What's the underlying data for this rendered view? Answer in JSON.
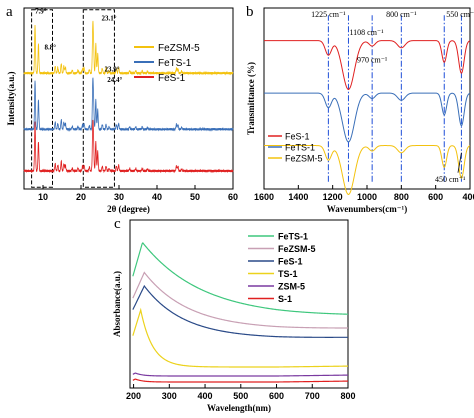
{
  "colors": {
    "red": "#e02020",
    "blue": "#3a6fb8",
    "gold": "#f3c20f",
    "green": "#3ec77d",
    "pink": "#c8a0b4",
    "navy": "#2a4a88",
    "yellow": "#ecd21c",
    "purple": "#7a3aa0",
    "dash_blue": "#1f4fd8"
  },
  "panel_labels": {
    "a": "a",
    "b": "b",
    "c": "c"
  },
  "chart_data": [
    {
      "id": "a",
      "type": "line",
      "title": "",
      "xlabel": "2θ (degree)",
      "ylabel": "Intensity(a.u.)",
      "xlim": [
        5,
        60
      ],
      "xticks": [
        10,
        20,
        30,
        40,
        50,
        60
      ],
      "tick_labels": [
        "10",
        "20",
        "30",
        "40",
        "50",
        "60"
      ],
      "grid": false,
      "legend_position": "top-right",
      "legend": [
        "FeZSM-5",
        "FeTS-1",
        "FeS-1"
      ],
      "series": [
        {
          "name": "FeZSM-5",
          "color": "gold",
          "baseline": 0.64
        },
        {
          "name": "FeTS-1",
          "color": "blue",
          "baseline": 0.33
        },
        {
          "name": "FeS-1",
          "color": "red",
          "baseline": 0.1
        }
      ],
      "peaks": [
        {
          "x": 7.9,
          "h": 1.0
        },
        {
          "x": 8.8,
          "h": 0.6
        },
        {
          "x": 13.2,
          "h": 0.15
        },
        {
          "x": 13.9,
          "h": 0.12
        },
        {
          "x": 14.8,
          "h": 0.2
        },
        {
          "x": 15.5,
          "h": 0.15
        },
        {
          "x": 15.9,
          "h": 0.12
        },
        {
          "x": 17.7,
          "h": 0.06
        },
        {
          "x": 19.2,
          "h": 0.06
        },
        {
          "x": 20.4,
          "h": 0.1
        },
        {
          "x": 20.8,
          "h": 0.12
        },
        {
          "x": 22.2,
          "h": 0.08
        },
        {
          "x": 23.1,
          "h": 0.9
        },
        {
          "x": 23.3,
          "h": 0.5
        },
        {
          "x": 23.9,
          "h": 0.6
        },
        {
          "x": 24.4,
          "h": 0.4
        },
        {
          "x": 25.6,
          "h": 0.1
        },
        {
          "x": 26.6,
          "h": 0.1
        },
        {
          "x": 27.4,
          "h": 0.05
        },
        {
          "x": 29.3,
          "h": 0.1
        },
        {
          "x": 29.9,
          "h": 0.12
        },
        {
          "x": 32.8,
          "h": 0.05
        },
        {
          "x": 34.4,
          "h": 0.05
        },
        {
          "x": 36.1,
          "h": 0.05
        },
        {
          "x": 37.5,
          "h": 0.04
        },
        {
          "x": 45.1,
          "h": 0.1
        },
        {
          "x": 45.5,
          "h": 0.1
        },
        {
          "x": 46.5,
          "h": 0.04
        }
      ],
      "annotations": [
        {
          "text": "7.9°",
          "x": 7.9,
          "y": 0.97
        },
        {
          "text": "8.8°",
          "x": 10.4,
          "y": 0.77
        },
        {
          "text": "23.1°",
          "x": 25.4,
          "y": 0.93
        },
        {
          "text": "23.9°",
          "x": 26.2,
          "y": 0.65
        },
        {
          "text": "24.4°",
          "x": 26.9,
          "y": 0.59
        }
      ],
      "dashed_boxes": [
        {
          "x0": 7.0,
          "x1": 12.5,
          "y0": 0.01,
          "y1": 0.99
        },
        {
          "x0": 20.6,
          "x1": 28.8,
          "y0": 0.01,
          "y1": 0.99
        }
      ]
    },
    {
      "id": "b",
      "type": "line",
      "title": "",
      "xlabel": "Wavenumbers(cm⁻¹)",
      "ylabel": "Transmittance (%)",
      "xlim": [
        1600,
        400
      ],
      "xticks": [
        1600,
        1400,
        1200,
        1000,
        800,
        600,
        400
      ],
      "tick_labels": [
        "1600",
        "1400",
        "1200",
        "1000",
        "800",
        "600",
        "400"
      ],
      "grid": false,
      "legend_position": "bottom-left",
      "legend": [
        "FeS-1",
        "FeTS-1",
        "FeZSM-5"
      ],
      "series": [
        {
          "name": "FeS-1",
          "color": "red",
          "baseline": 0.82
        },
        {
          "name": "FeTS-1",
          "color": "blue",
          "baseline": 0.53
        },
        {
          "name": "FeZSM-5",
          "color": "gold",
          "baseline": 0.24
        }
      ],
      "bands": [
        {
          "x": 1225,
          "d": 0.08,
          "w": 18
        },
        {
          "x": 1108,
          "d": 0.27,
          "w": 35
        },
        {
          "x": 970,
          "d": 0.03,
          "w": 18
        },
        {
          "x": 800,
          "d": 0.04,
          "w": 22
        },
        {
          "x": 550,
          "d": 0.12,
          "w": 14
        },
        {
          "x": 450,
          "d": 0.18,
          "w": 16
        }
      ],
      "reference_lines": [
        1225,
        1108,
        970,
        800,
        550,
        450
      ],
      "annotations": [
        {
          "text": "1225 cm⁻¹",
          "x": 1225,
          "y": 0.95
        },
        {
          "text": "1108 cm⁻¹",
          "x": 1108,
          "y": 0.85
        },
        {
          "text": "970 cm⁻¹",
          "x": 970,
          "y": 0.7
        },
        {
          "text": "800 cm⁻¹",
          "x": 800,
          "y": 0.95
        },
        {
          "text": "550 cm⁻¹",
          "x": 550,
          "y": 0.95
        },
        {
          "text": "450 cm⁻¹",
          "x": 450,
          "y": 0.04
        }
      ]
    },
    {
      "id": "c",
      "type": "line",
      "title": "",
      "xlabel": "Wavelength(nm)",
      "ylabel": "Absorbance(a.u.)",
      "xlim": [
        190,
        800
      ],
      "xticks": [
        200,
        300,
        400,
        500,
        600,
        700,
        800
      ],
      "tick_labels": [
        "200",
        "300",
        "400",
        "500",
        "600",
        "700",
        "800"
      ],
      "grid": false,
      "legend_position": "top-right",
      "legend": [
        "FeTS-1",
        "FeZSM-5",
        "FeS-1",
        "TS-1",
        "ZSM-5",
        "S-1"
      ],
      "series": [
        {
          "name": "FeTS-1",
          "color": "green",
          "plateau": 0.45,
          "peak_x": 225,
          "peak_h": 0.95,
          "decay": 0.006
        },
        {
          "name": "FeZSM-5",
          "color": "pink",
          "plateau": 0.37,
          "peak_x": 230,
          "peak_h": 0.75,
          "decay": 0.008
        },
        {
          "name": "FeS-1",
          "color": "navy",
          "plateau": 0.31,
          "peak_x": 230,
          "peak_h": 0.66,
          "decay": 0.009
        },
        {
          "name": "TS-1",
          "color": "yellow",
          "plateau": 0.12,
          "peak_x": 220,
          "peak_h": 0.5,
          "decay": 0.03
        },
        {
          "name": "ZSM-5",
          "color": "purple",
          "plateau": 0.06,
          "peak_x": 205,
          "peak_h": 0.08,
          "decay": 0.05
        },
        {
          "name": "S-1",
          "color": "red",
          "plateau": 0.02,
          "peak_x": 205,
          "peak_h": 0.04,
          "decay": 0.05
        }
      ]
    }
  ]
}
